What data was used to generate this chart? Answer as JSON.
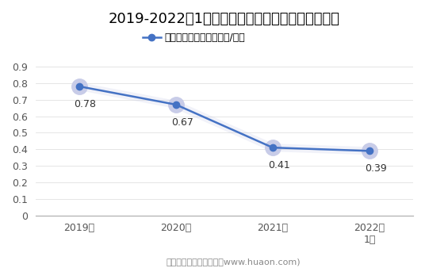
{
  "title": "2019-2022年1月上海期货交易所黄金期权成交均价",
  "legend_label": "黄金期权成交均价（万元/手）",
  "x_labels": [
    "2019年",
    "2020年",
    "2021年",
    "2022年\n1月"
  ],
  "x_values": [
    0,
    1,
    2,
    3
  ],
  "y_values": [
    0.78,
    0.67,
    0.41,
    0.39
  ],
  "annotations": [
    "0.78",
    "0.67",
    "0.41",
    "0.39"
  ],
  "ylim": [
    0,
    0.95
  ],
  "yticks": [
    0,
    0.1,
    0.2,
    0.3,
    0.4,
    0.5,
    0.6,
    0.7,
    0.8,
    0.9
  ],
  "line_color": "#4472C4",
  "marker_size": 6,
  "line_width": 1.8,
  "annotation_fontsize": 9,
  "title_fontsize": 13,
  "legend_fontsize": 9,
  "tick_fontsize": 9,
  "footer_text": "制图：华经产业研究院（www.huaon.com)",
  "background_color": "#ffffff",
  "grid_color": "#e0e0e0",
  "axis_color": "#aaaaaa",
  "text_color": "#333333",
  "shadow_colors": [
    "#c8cce8",
    "#b0b4dc",
    "#9098cc"
  ],
  "shadow_sizes": [
    14,
    11,
    8
  ]
}
